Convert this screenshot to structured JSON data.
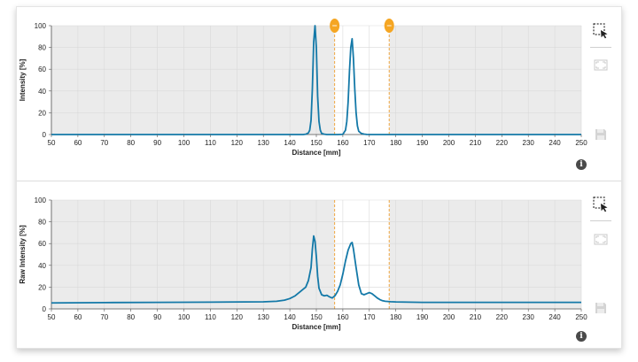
{
  "colors": {
    "series": "#1479a8",
    "marker": "#f5a623",
    "marker_line": "#f0a640",
    "plot_bg": "#ebebeb",
    "selection_bg": "#ffffff"
  },
  "tools": {
    "icons": [
      "zoom-select-icon",
      "fit-view-icon",
      "save-icon",
      "info-icon"
    ]
  },
  "chart_data": [
    {
      "type": "line",
      "title": "",
      "xlabel": "Distance [mm]",
      "ylabel": "Intensity [%]",
      "xlim": [
        50,
        250
      ],
      "ylim": [
        0,
        100
      ],
      "x_ticks": [
        "50",
        "60",
        "70",
        "80",
        "90",
        "100",
        "110",
        "120",
        "130",
        "140",
        "150",
        "160",
        "170",
        "180",
        "190",
        "200",
        "210",
        "220",
        "230",
        "240",
        "250"
      ],
      "y_ticks": [
        "0",
        "20",
        "40",
        "60",
        "80",
        "100"
      ],
      "grid": true,
      "selection_range": [
        156.9,
        177.5
      ],
      "series": [
        {
          "x": [
            50,
            145,
            146,
            147,
            147.5,
            148,
            148.5,
            149,
            149.5,
            150,
            150.5,
            151,
            151.5,
            152,
            153,
            154,
            158,
            160,
            161,
            161.5,
            162,
            162.5,
            163,
            163.5,
            164,
            164.5,
            165,
            165.5,
            166,
            167,
            168,
            169,
            170,
            250
          ],
          "y": [
            0,
            0,
            0.3,
            1.5,
            4,
            13,
            42,
            85,
            100,
            80,
            35,
            12,
            4,
            1,
            0.3,
            0,
            0,
            0.2,
            4,
            12,
            30,
            58,
            80,
            88,
            70,
            42,
            20,
            8,
            3,
            1,
            0.4,
            0.1,
            0,
            0
          ]
        }
      ]
    },
    {
      "type": "line",
      "title": "",
      "xlabel": "Distance [mm]",
      "ylabel": "Raw Intensity [%]",
      "xlim": [
        50,
        250
      ],
      "ylim": [
        0,
        100
      ],
      "x_ticks": [
        "50",
        "60",
        "70",
        "80",
        "90",
        "100",
        "110",
        "120",
        "130",
        "140",
        "150",
        "160",
        "170",
        "180",
        "190",
        "200",
        "210",
        "220",
        "230",
        "240",
        "250"
      ],
      "y_ticks": [
        "0",
        "20",
        "40",
        "60",
        "80",
        "100"
      ],
      "grid": true,
      "selection_range": [
        156.9,
        177.5
      ],
      "series": [
        {
          "x": [
            50,
            70,
            90,
            110,
            130,
            135,
            138,
            140,
            142,
            144,
            145,
            146,
            147,
            148,
            148.5,
            149,
            149.5,
            150,
            150.5,
            151,
            152,
            153,
            154,
            155,
            156,
            157,
            158,
            159,
            160,
            161,
            162,
            163,
            163.5,
            164,
            165,
            166,
            167,
            168,
            169,
            170,
            171,
            172,
            173,
            174,
            175,
            176,
            177,
            178,
            180,
            185,
            190,
            200,
            220,
            240,
            250
          ],
          "y": [
            5.5,
            5.8,
            6,
            6.2,
            6.5,
            7,
            8,
            9.5,
            12,
            16,
            18,
            20,
            26,
            38,
            55,
            67,
            62,
            48,
            30,
            19,
            13,
            12,
            12.5,
            11,
            10,
            12,
            16,
            22,
            32,
            44,
            54,
            60,
            61,
            55,
            38,
            22,
            14,
            13,
            14,
            15,
            14,
            12,
            10,
            8.5,
            7.5,
            7,
            6.8,
            6.6,
            6.4,
            6.2,
            6,
            6,
            6,
            6,
            6
          ]
        }
      ]
    }
  ]
}
